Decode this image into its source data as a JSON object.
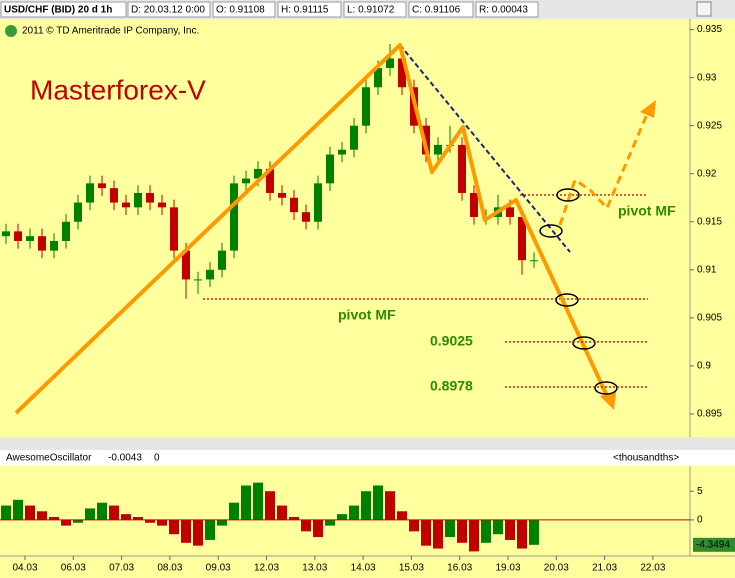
{
  "chart_data": [
    {
      "type": "candlestick",
      "header": [
        "USD/CHF (BID) 20 d 1h",
        "D: 20.03.12 0:00",
        "O: 0.91108",
        "H: 0.91115",
        "L: 0.91072",
        "C: 0.91106",
        "R: 0.00043"
      ],
      "copyright": "2011 © TD Ameritrade IP Company, Inc.",
      "title": "Masterforex-V",
      "annotations": [
        "pivot MF",
        "pivot MF"
      ],
      "levels": [
        {
          "value": 0.9025,
          "label": "0.9025"
        },
        {
          "value": 0.8978,
          "label": "0.8978"
        }
      ],
      "open": [
        0.9135,
        0.914,
        0.913,
        0.9135,
        0.912,
        0.913,
        0.915,
        0.917,
        0.919,
        0.9185,
        0.917,
        0.9165,
        0.918,
        0.917,
        0.9165,
        0.912,
        0.909,
        0.909,
        0.91,
        0.912,
        0.919,
        0.9195,
        0.9205,
        0.918,
        0.9175,
        0.916,
        0.915,
        0.919,
        0.922,
        0.9225,
        0.925,
        0.929,
        0.931,
        0.932,
        0.929,
        0.925,
        0.922,
        0.923,
        0.923,
        0.918,
        0.9155,
        0.9155,
        0.9165,
        0.9155,
        0.911
      ],
      "high": [
        0.9148,
        0.9148,
        0.9143,
        0.9143,
        0.9138,
        0.9158,
        0.9178,
        0.9198,
        0.9198,
        0.9193,
        0.9178,
        0.9188,
        0.9188,
        0.9178,
        0.9173,
        0.9128,
        0.9098,
        0.9108,
        0.9128,
        0.9198,
        0.9203,
        0.9213,
        0.9213,
        0.9188,
        0.9183,
        0.9168,
        0.9198,
        0.9228,
        0.9233,
        0.9258,
        0.9298,
        0.9318,
        0.9335,
        0.9328,
        0.9298,
        0.9258,
        0.9238,
        0.925,
        0.9238,
        0.9188,
        0.9163,
        0.9178,
        0.9173,
        0.9163,
        0.9118
      ],
      "low": [
        0.9127,
        0.9122,
        0.9122,
        0.9112,
        0.9112,
        0.9122,
        0.9142,
        0.9162,
        0.9177,
        0.9162,
        0.9157,
        0.9157,
        0.9162,
        0.9157,
        0.9112,
        0.907,
        0.9075,
        0.9082,
        0.9092,
        0.9112,
        0.9182,
        0.9187,
        0.9172,
        0.9167,
        0.9152,
        0.9142,
        0.9142,
        0.9182,
        0.9212,
        0.9217,
        0.9242,
        0.9282,
        0.9302,
        0.9282,
        0.9242,
        0.9212,
        0.9212,
        0.9222,
        0.9172,
        0.9147,
        0.9147,
        0.9147,
        0.9147,
        0.9095,
        0.9102
      ],
      "close": [
        0.914,
        0.913,
        0.9135,
        0.912,
        0.913,
        0.915,
        0.917,
        0.919,
        0.9185,
        0.917,
        0.9165,
        0.918,
        0.917,
        0.9165,
        0.912,
        0.909,
        0.909,
        0.91,
        0.912,
        0.919,
        0.9195,
        0.9205,
        0.918,
        0.9175,
        0.916,
        0.915,
        0.919,
        0.922,
        0.9225,
        0.925,
        0.929,
        0.931,
        0.932,
        0.929,
        0.925,
        0.922,
        0.923,
        0.923,
        0.918,
        0.9155,
        0.9155,
        0.9165,
        0.9155,
        0.911,
        0.911
      ],
      "up_color": "#008000",
      "down_color": "#c00000",
      "ylim": [
        0.8926,
        0.936
      ],
      "yticks": [
        0.935,
        0.93,
        0.925,
        0.92,
        0.915,
        0.91,
        0.905,
        0.9,
        0.895
      ]
    },
    {
      "type": "histogram_oscillator",
      "header": [
        "AwesomeOscillator",
        "-0.0043",
        "0",
        "<thousandths>"
      ],
      "values": [
        2.5,
        3.5,
        2.5,
        1.5,
        0.5,
        -1,
        -0.5,
        2,
        3,
        2.5,
        1,
        0.5,
        -0.5,
        -1,
        -2.5,
        -4,
        -4.5,
        -3.5,
        -1,
        3,
        6,
        6.5,
        5,
        2.5,
        0.5,
        -2,
        -3,
        -1,
        1,
        2.5,
        5,
        6,
        5,
        1.5,
        -2,
        -4.5,
        -5,
        -3,
        -4,
        -5.5,
        -4,
        -2.5,
        -3.5,
        -5,
        -4.3494
      ],
      "up_color": "#008000",
      "down_color": "#c00000",
      "ylim": [
        -6.3,
        9.4
      ],
      "yticks": [
        0,
        5
      ],
      "categories": [
        "04.03",
        "06.03",
        "07.03",
        "08.03",
        "09.03",
        "12.03",
        "13.03",
        "14.03",
        "15.03",
        "16.03",
        "19.03",
        "20.03",
        "21.03",
        "22.03"
      ]
    }
  ]
}
